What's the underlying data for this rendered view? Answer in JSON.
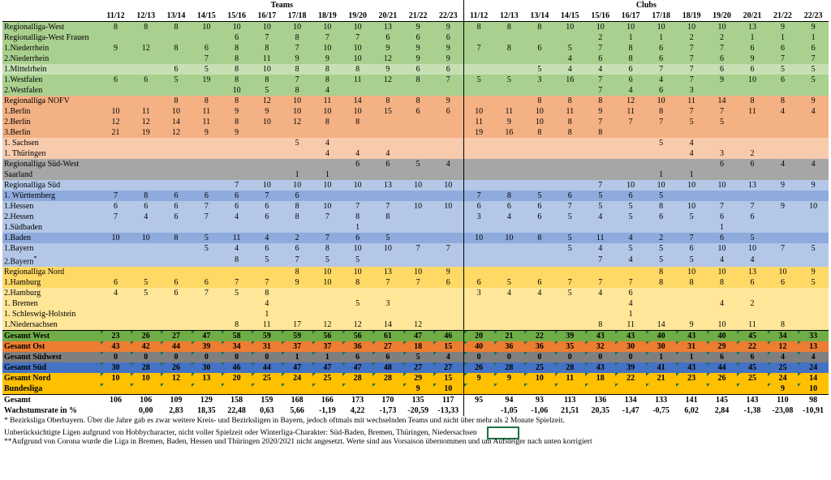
{
  "headers": {
    "teams": "Teams",
    "clubs": "Clubs",
    "seasons": [
      "11/12",
      "12/13",
      "13/14",
      "14/15",
      "15/16",
      "16/17",
      "17/18",
      "18/19",
      "19/20",
      "20/21",
      "21/22",
      "22/23"
    ]
  },
  "colors": {
    "west": "#c6e0b4",
    "west_dark": "#a9d08e",
    "nofv": "#f4b183",
    "nofv_light": "#f8cbad",
    "sw": "#a6a6a6",
    "sued": "#b4c7e7",
    "sued_dark": "#8faadc",
    "nord": "#ffe699",
    "nord_dark": "#ffd966",
    "total_west": "#70ad47",
    "total_ost": "#ed7d31",
    "total_sw": "#7f7f7f",
    "total_sued": "#4472c4",
    "total_nord": "#ffc000",
    "bundesliga": "#ffc000"
  },
  "rows": [
    {
      "name": "Regionalliga-West",
      "bg": "#a9d08e",
      "teams": [
        "8",
        "8",
        "8",
        "10",
        "10",
        "10",
        "10",
        "10",
        "10",
        "13",
        "9",
        "9"
      ],
      "clubs": [
        "8",
        "8",
        "8",
        "10",
        "10",
        "10",
        "10",
        "10",
        "10",
        "13",
        "9",
        "9"
      ]
    },
    {
      "name": "Regionalliga-West Frauen",
      "bg": "#a9d08e",
      "teams": [
        "",
        "",
        "",
        "",
        "6",
        "7",
        "8",
        "7",
        "7",
        "6",
        "6",
        "6"
      ],
      "clubs": [
        "",
        "",
        "",
        "",
        "2",
        "1",
        "1",
        "2",
        "2",
        "1",
        "1",
        "1"
      ]
    },
    {
      "name": "1.Niederrhein",
      "bg": "#a9d08e",
      "teams": [
        "9",
        "12",
        "8",
        "6",
        "8",
        "8",
        "7",
        "10",
        "10",
        "9",
        "9",
        "9"
      ],
      "clubs": [
        "7",
        "8",
        "6",
        "5",
        "7",
        "8",
        "6",
        "7",
        "7",
        "6",
        "6",
        "6"
      ]
    },
    {
      "name": "2.Niederrhein",
      "bg": "#a9d08e",
      "teams": [
        "",
        "",
        "",
        "7",
        "8",
        "11",
        "9",
        "9",
        "10",
        "12",
        "9",
        "9"
      ],
      "clubs": [
        "",
        "",
        "",
        "4",
        "6",
        "8",
        "6",
        "7",
        "6",
        "9",
        "7",
        "7"
      ]
    },
    {
      "name": "1.Mittelrhein",
      "bg": "#c6e0b4",
      "teams": [
        "",
        "",
        "6",
        "5",
        "8",
        "10",
        "8",
        "8",
        "8",
        "9",
        "6",
        "6"
      ],
      "clubs": [
        "",
        "",
        "5",
        "4",
        "4",
        "6",
        "7",
        "7",
        "6",
        "6",
        "5",
        "5"
      ]
    },
    {
      "name": "1.Westfalen",
      "bg": "#a9d08e",
      "teams": [
        "6",
        "6",
        "5",
        "19",
        "8",
        "8",
        "7",
        "8",
        "11",
        "12",
        "8",
        "7"
      ],
      "clubs": [
        "5",
        "5",
        "3",
        "16",
        "7",
        "6",
        "4",
        "7",
        "9",
        "10",
        "6",
        "5"
      ]
    },
    {
      "name": "2.Westfalen",
      "bg": "#a9d08e",
      "teams": [
        "",
        "",
        "",
        "",
        "10",
        "5",
        "8",
        "4",
        "",
        "",
        "",
        ""
      ],
      "clubs": [
        "",
        "",
        "",
        "",
        "7",
        "4",
        "6",
        "3",
        "",
        "",
        "",
        ""
      ]
    },
    {
      "name": "Regionalliga NOFV",
      "bg": "#f4b183",
      "teams": [
        "",
        "",
        "8",
        "8",
        "8",
        "12",
        "10",
        "11",
        "14",
        "8",
        "8",
        "9"
      ],
      "clubs": [
        "",
        "",
        "8",
        "8",
        "8",
        "12",
        "10",
        "11",
        "14",
        "8",
        "8",
        "9"
      ]
    },
    {
      "name": "1.Berlin",
      "bg": "#f4b183",
      "teams": [
        "10",
        "11",
        "10",
        "11",
        "9",
        "9",
        "10",
        "10",
        "10",
        "15",
        "6",
        "6"
      ],
      "clubs": [
        "10",
        "11",
        "10",
        "11",
        "9",
        "11",
        "8",
        "7",
        "7",
        "11",
        "4",
        "4"
      ]
    },
    {
      "name": "2.Berlin",
      "bg": "#f4b183",
      "teams": [
        "12",
        "12",
        "14",
        "11",
        "8",
        "10",
        "12",
        "8",
        "8",
        "",
        "",
        ""
      ],
      "clubs": [
        "11",
        "9",
        "10",
        "8",
        "7",
        "7",
        "7",
        "5",
        "5",
        "",
        "",
        ""
      ]
    },
    {
      "name": "3.Berlin",
      "bg": "#f4b183",
      "teams": [
        "21",
        "19",
        "12",
        "9",
        "9",
        "",
        "",
        "",
        "",
        "",
        "",
        ""
      ],
      "clubs": [
        "19",
        "16",
        "8",
        "8",
        "8",
        "",
        "",
        "",
        "",
        "",
        "",
        ""
      ]
    },
    {
      "name": "1. Sachsen",
      "bg": "#f8cbad",
      "teams": [
        "",
        "",
        "",
        "",
        "",
        "",
        "5",
        "4",
        "",
        "",
        "",
        ""
      ],
      "clubs": [
        "",
        "",
        "",
        "",
        "",
        "",
        "5",
        "4",
        "",
        "",
        "",
        ""
      ]
    },
    {
      "name": "1. Thüringen",
      "bg": "#f8cbad",
      "teams": [
        "",
        "",
        "",
        "",
        "",
        "",
        "",
        "4",
        "4",
        "4",
        "",
        ""
      ],
      "clubs": [
        "",
        "",
        "",
        "",
        "",
        "",
        "",
        "4",
        "3",
        "2",
        "",
        ""
      ]
    },
    {
      "name": "Regionalliga Süd-West",
      "bg": "#a6a6a6",
      "teams": [
        "",
        "",
        "",
        "",
        "",
        "",
        "",
        "",
        "6",
        "6",
        "5",
        "4"
      ],
      "clubs": [
        "",
        "",
        "",
        "",
        "",
        "",
        "",
        "",
        "6",
        "6",
        "4",
        "4"
      ]
    },
    {
      "name": "Saarland",
      "bg": "#a6a6a6",
      "teams": [
        "",
        "",
        "",
        "",
        "",
        "",
        "1",
        "1",
        "",
        "",
        "",
        ""
      ],
      "clubs": [
        "",
        "",
        "",
        "",
        "",
        "",
        "1",
        "1",
        "",
        "",
        "",
        ""
      ]
    },
    {
      "name": "Regionalliga Süd",
      "bg": "#b4c7e7",
      "teams": [
        "",
        "",
        "",
        "",
        "7",
        "10",
        "10",
        "10",
        "10",
        "13",
        "10",
        "10"
      ],
      "clubs": [
        "",
        "",
        "",
        "",
        "7",
        "10",
        "10",
        "10",
        "10",
        "13",
        "9",
        "9"
      ]
    },
    {
      "name": "1. Württemberg",
      "bg": "#8faadc",
      "teams": [
        "7",
        "8",
        "6",
        "6",
        "6",
        "7",
        "6",
        "",
        "",
        "",
        "",
        ""
      ],
      "clubs": [
        "7",
        "8",
        "5",
        "6",
        "5",
        "6",
        "5",
        "",
        "",
        "",
        "",
        ""
      ]
    },
    {
      "name": "1.Hessen",
      "bg": "#b4c7e7",
      "teams": [
        "6",
        "6",
        "6",
        "7",
        "6",
        "6",
        "8",
        "10",
        "7",
        "7",
        "10",
        "10"
      ],
      "clubs": [
        "6",
        "6",
        "6",
        "7",
        "5",
        "5",
        "8",
        "10",
        "7",
        "7",
        "9",
        "10"
      ]
    },
    {
      "name": "2.Hessen",
      "bg": "#b4c7e7",
      "teams": [
        "7",
        "4",
        "6",
        "7",
        "4",
        "6",
        "8",
        "7",
        "8",
        "8",
        "",
        ""
      ],
      "clubs": [
        "3",
        "4",
        "6",
        "5",
        "4",
        "5",
        "6",
        "5",
        "6",
        "6",
        "",
        ""
      ]
    },
    {
      "name": "1.Südbaden",
      "bg": "#b4c7e7",
      "teams": [
        "",
        "",
        "",
        "",
        "",
        "",
        "",
        "",
        "1",
        "",
        "",
        ""
      ],
      "clubs": [
        "",
        "",
        "",
        "",
        "",
        "",
        "",
        "",
        "1",
        "",
        "",
        ""
      ]
    },
    {
      "name": "1.Baden",
      "bg": "#8faadc",
      "teams": [
        "10",
        "10",
        "8",
        "5",
        "11",
        "4",
        "2",
        "7",
        "6",
        "5",
        "",
        ""
      ],
      "clubs": [
        "10",
        "10",
        "8",
        "5",
        "11",
        "4",
        "2",
        "7",
        "6",
        "5",
        "",
        ""
      ]
    },
    {
      "name": "1.Bayern",
      "bg": "#b4c7e7",
      "teams": [
        "",
        "",
        "",
        "5",
        "4",
        "6",
        "6",
        "8",
        "10",
        "10",
        "7",
        "7"
      ],
      "clubs": [
        "",
        "",
        "",
        "5",
        "4",
        "5",
        "5",
        "6",
        "10",
        "10",
        "7",
        "5"
      ]
    },
    {
      "name": "2.Bayern",
      "sup": "*",
      "bg": "#b4c7e7",
      "teams": [
        "",
        "",
        "",
        "",
        "8",
        "5",
        "7",
        "5",
        "5",
        "",
        "",
        ""
      ],
      "clubs": [
        "",
        "",
        "",
        "",
        "7",
        "4",
        "5",
        "5",
        "4",
        "4",
        "",
        ""
      ]
    },
    {
      "name": "Regionalliga Nord",
      "bg": "#ffd966",
      "teams": [
        "",
        "",
        "",
        "",
        "",
        "",
        "8",
        "10",
        "10",
        "13",
        "10",
        "9"
      ],
      "clubs": [
        "",
        "",
        "",
        "",
        "",
        "",
        "8",
        "10",
        "10",
        "13",
        "10",
        "9"
      ]
    },
    {
      "name": "1.Hamburg",
      "bg": "#ffd966",
      "teams": [
        "6",
        "5",
        "6",
        "6",
        "7",
        "7",
        "9",
        "10",
        "8",
        "7",
        "7",
        "6"
      ],
      "clubs": [
        "6",
        "5",
        "6",
        "7",
        "7",
        "7",
        "8",
        "8",
        "8",
        "6",
        "6",
        "5"
      ]
    },
    {
      "name": "2.Hamburg",
      "bg": "#ffe699",
      "teams": [
        "4",
        "5",
        "6",
        "7",
        "5",
        "8",
        "",
        "",
        "",
        "",
        "",
        ""
      ],
      "clubs": [
        "3",
        "4",
        "4",
        "5",
        "4",
        "6",
        "",
        "",
        "",
        "",
        "",
        ""
      ]
    },
    {
      "name": "1. Bremen",
      "bg": "#ffe699",
      "teams": [
        "",
        "",
        "",
        "",
        "",
        "4",
        "",
        "",
        "5",
        "3",
        "",
        ""
      ],
      "clubs": [
        "",
        "",
        "",
        "",
        "",
        "4",
        "",
        "",
        "4",
        "2",
        "",
        ""
      ]
    },
    {
      "name": "1. Schleswig-Holstein",
      "bg": "#ffe699",
      "teams": [
        "",
        "",
        "",
        "",
        "",
        "1",
        "",
        "",
        "",
        "",
        "",
        ""
      ],
      "clubs": [
        "",
        "",
        "",
        "",
        "",
        "1",
        "",
        "",
        "",
        "",
        "",
        ""
      ]
    },
    {
      "name": "1.Niedersachsen",
      "bg": "#ffe699",
      "teams": [
        "",
        "",
        "",
        "",
        "8",
        "11",
        "17",
        "12",
        "12",
        "14",
        "12",
        ""
      ],
      "clubs": [
        "",
        "",
        "",
        "",
        "8",
        "11",
        "14",
        "9",
        "10",
        "11",
        "8",
        ""
      ]
    }
  ],
  "totals": [
    {
      "name": "Gesamt West",
      "bg": "#70ad47",
      "teams": [
        "23",
        "26",
        "27",
        "47",
        "58",
        "59",
        "59",
        "56",
        "56",
        "61",
        "47",
        "46"
      ],
      "clubs": [
        "20",
        "21",
        "22",
        "39",
        "43",
        "43",
        "40",
        "43",
        "40",
        "45",
        "34",
        "33"
      ]
    },
    {
      "name": "Gesamt Ost",
      "bg": "#ed7d31",
      "teams": [
        "43",
        "42",
        "44",
        "39",
        "34",
        "31",
        "37",
        "37",
        "36",
        "27",
        "18",
        "15"
      ],
      "clubs": [
        "40",
        "36",
        "36",
        "35",
        "32",
        "30",
        "30",
        "31",
        "29",
        "22",
        "12",
        "13"
      ]
    },
    {
      "name": "Gesamt Südwest",
      "bg": "#7f7f7f",
      "teams": [
        "0",
        "0",
        "0",
        "0",
        "0",
        "0",
        "1",
        "1",
        "6",
        "6",
        "5",
        "4"
      ],
      "clubs": [
        "0",
        "0",
        "0",
        "0",
        "0",
        "0",
        "1",
        "1",
        "6",
        "6",
        "4",
        "4"
      ]
    },
    {
      "name": "Gesamt Süd",
      "bg": "#4472c4",
      "teams": [
        "30",
        "28",
        "26",
        "30",
        "46",
        "44",
        "47",
        "47",
        "47",
        "48",
        "27",
        "27"
      ],
      "clubs": [
        "26",
        "28",
        "25",
        "28",
        "43",
        "39",
        "41",
        "43",
        "44",
        "45",
        "25",
        "24"
      ]
    },
    {
      "name": "Gesamt Nord",
      "bg": "#ffc000",
      "teams": [
        "10",
        "10",
        "12",
        "13",
        "20",
        "25",
        "24",
        "25",
        "28",
        "28",
        "29",
        "15"
      ],
      "clubs": [
        "9",
        "9",
        "10",
        "11",
        "18",
        "22",
        "21",
        "23",
        "26",
        "25",
        "24",
        "14"
      ]
    },
    {
      "name": "Bundesliga",
      "bg": "#ffc000",
      "teams": [
        "",
        "",
        "",
        "",
        "",
        "",
        "",
        "",
        "",
        "",
        "9",
        "10"
      ],
      "clubs": [
        "",
        "",
        "",
        "",
        "",
        "",
        "",
        "",
        "",
        "",
        "9",
        "10"
      ]
    }
  ],
  "summary": [
    {
      "name": "Gesamt",
      "teams": [
        "106",
        "106",
        "109",
        "129",
        "158",
        "159",
        "168",
        "166",
        "173",
        "170",
        "135",
        "117"
      ],
      "clubs": [
        "95",
        "94",
        "93",
        "113",
        "136",
        "134",
        "133",
        "141",
        "145",
        "143",
        "110",
        "98"
      ]
    },
    {
      "name": "Wachstumsrate in %",
      "teams": [
        "",
        "0,00",
        "2,83",
        "18,35",
        "22,48",
        "0,63",
        "5,66",
        "-1,19",
        "4,22",
        "-1,73",
        "-20,59",
        "-13,33"
      ],
      "clubs": [
        "",
        "-1,05",
        "-1,06",
        "21,51",
        "20,35",
        "-1,47",
        "-0,75",
        "6,02",
        "2,84",
        "-1,38",
        "-23,08",
        "-10,91"
      ]
    }
  ],
  "notes": [
    "* Bezirksliga Oberbayern. Über die Jahre gab es zwar weitere Kreis- und Bezirksligen in Bayern, jedoch oftmals mit wechselnden Teams und nicht über mehr als 2 Monate Spielzeit.",
    "Unberücksichtigte Ligen aufgrund von Hobbycharacter, nicht voller Spielzeit oder Winterliga-Charakter: Süd-Baden, Bremen, Thüringen, Niedersachsen",
    "**Aufgrund von Corona wurde die Liga in Bremen, Baden, Hessen und Thüringen 2020/2021 nicht angesetzt. Werte sind aus Vorsaison übernommen und um Aufsteiger nach unten korrigiert"
  ]
}
